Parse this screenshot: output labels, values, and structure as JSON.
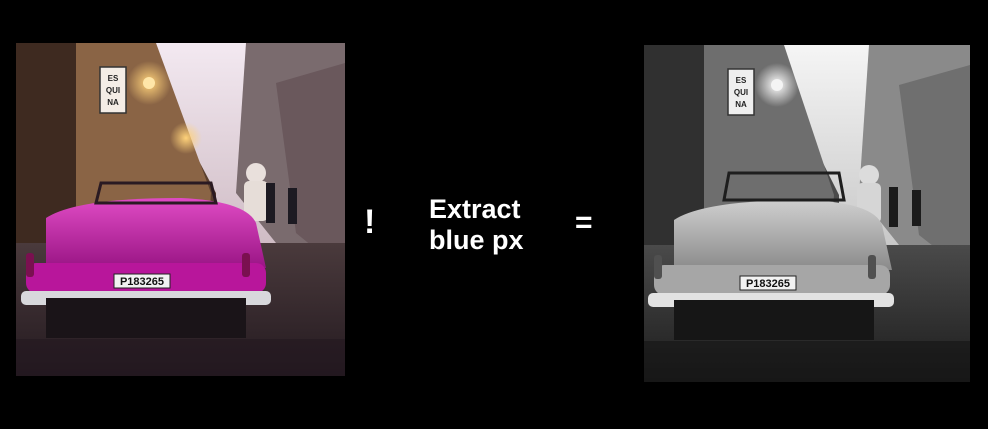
{
  "operator_symbol": "!",
  "operation": {
    "line1": "Extract",
    "line2": "blue px"
  },
  "equals_symbol": "=",
  "photo_left": {
    "sign_text": "ES\nQUI\nNA",
    "plate_text": "P183265",
    "car_color": "#c21fa6"
  },
  "photo_right": {
    "sign_text": "ES\nQUI\nNA",
    "plate_text": "P183265",
    "car_color": "#b8b8b8"
  }
}
